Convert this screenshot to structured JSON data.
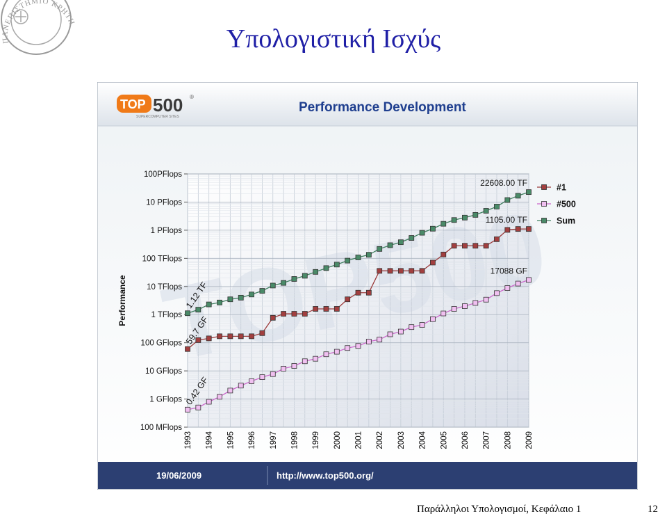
{
  "slide": {
    "title": "Υπολογιστική Ισχύς",
    "footer": "Παράλληλοι Υπολογισμοί, Κεφάλαιο 1",
    "page_number": "12",
    "seal_text": "ΠΑΝΕΠΙΣΤΗΜΙΟ ΚΡΗΤΗΣ"
  },
  "header": {
    "logo_text": "TOP500",
    "logo_top": "TOP",
    "logo_num": "500",
    "logo_registered": "®",
    "logo_tagline": "SUPERCOMPUTER SITES",
    "chart_title": "Performance Development"
  },
  "footer_bar": {
    "date": "19/06/2009",
    "url": "http://www.top500.org/"
  },
  "colors": {
    "title": "#1f1fa6",
    "header_text": "#1f3f8f",
    "number_one": "#9c3a3a",
    "number_500": "#cc66cc",
    "sum": "#3f7f5f",
    "footer_bar": "#2c3f72",
    "logo_orange": "#f07a18"
  },
  "chart_data": {
    "type": "line",
    "y_scale": "log",
    "ylabel": "Performance",
    "ylim_flops": [
      100000000.0,
      1e+17
    ],
    "yticks": [
      {
        "label": "100 MFlops",
        "value": 100000000.0
      },
      {
        "label": "1 GFlops",
        "value": 1000000000.0
      },
      {
        "label": "10 GFlops",
        "value": 10000000000.0
      },
      {
        "label": "100 GFlops",
        "value": 100000000000.0
      },
      {
        "label": "1 TFlops",
        "value": 1000000000000.0
      },
      {
        "label": "10 TFlops",
        "value": 10000000000000.0
      },
      {
        "label": "100 TFlops",
        "value": 100000000000000.0
      },
      {
        "label": "1 PFlops",
        "value": 1000000000000000.0
      },
      {
        "label": "10 PFlops",
        "value": 1e+16
      },
      {
        "label": "100PFlops",
        "value": 1e+17
      }
    ],
    "x_tick_labels": [
      "1993",
      "1994",
      "1995",
      "1996",
      "1997",
      "1998",
      "1999",
      "2000",
      "2001",
      "2002",
      "2003",
      "2004",
      "2005",
      "2006",
      "2007",
      "2008",
      "2009"
    ],
    "x": [
      1993.0,
      1993.5,
      1994.0,
      1994.5,
      1995.0,
      1995.5,
      1996.0,
      1996.5,
      1997.0,
      1997.5,
      1998.0,
      1998.5,
      1999.0,
      1999.5,
      2000.0,
      2000.5,
      2001.0,
      2001.5,
      2002.0,
      2002.5,
      2003.0,
      2003.5,
      2004.0,
      2004.5,
      2005.0,
      2005.5,
      2006.0,
      2006.5,
      2007.0,
      2007.5,
      2008.0,
      2008.5,
      2009.0
    ],
    "legend": [
      "#1",
      "#500",
      "Sum"
    ],
    "legend_position": "top-right",
    "series": [
      {
        "name": "#1",
        "values": [
          59700000000.0,
          124000000000.0,
          143000000000.0,
          170000000000.0,
          170000000000.0,
          170000000000.0,
          170000000000.0,
          220000000000.0,
          770000000000.0,
          1070000000000.0,
          1070000000000.0,
          1070000000000.0,
          1600000000000.0,
          1600000000000.0,
          1600000000000.0,
          3500000000000.0,
          6000000000000.0,
          6000000000000.0,
          35900000000000.0,
          35900000000000.0,
          35900000000000.0,
          35900000000000.0,
          35900000000000.0,
          70700000000000.0,
          137000000000000.0,
          280000000000000.0,
          280000000000000.0,
          280000000000000.0,
          280000000000000.0,
          478000000000000.0,
          1026000000000000.0,
          1105000000000000.0,
          1105000000000000.0
        ]
      },
      {
        "name": "#500",
        "values": [
          420000000.0,
          500000000.0,
          800000000.0,
          1200000000.0,
          2000000000.0,
          3000000000.0,
          4300000000.0,
          6000000000.0,
          7700000000.0,
          12000000000.0,
          15000000000.0,
          22000000000.0,
          27000000000.0,
          39000000000.0,
          48000000000.0,
          65000000000.0,
          77000000000.0,
          110000000000.0,
          130000000000.0,
          200000000000.0,
          250000000000.0,
          360000000000.0,
          430000000000.0,
          690000000000.0,
          1100000000000.0,
          1600000000000.0,
          2000000000000.0,
          2600000000000.0,
          3400000000000.0,
          5800000000000.0,
          8800000000000.0,
          12700000000000.0,
          17088000000000.0
        ]
      },
      {
        "name": "Sum",
        "values": [
          1120000000000.0,
          1500000000000.0,
          2300000000000.0,
          2700000000000.0,
          3500000000000.0,
          4000000000000.0,
          5200000000000.0,
          7000000000000.0,
          10800000000000.0,
          13400000000000.0,
          18500000000000.0,
          24000000000000.0,
          33000000000000.0,
          45000000000000.0,
          60000000000000.0,
          83000000000000.0,
          108000000000000.0,
          134000000000000.0,
          216000000000000.0,
          293000000000000.0,
          374000000000000.0,
          530000000000000.0,
          810000000000000.0,
          1130000000000000.0,
          1690000000000000.0,
          2300000000000000.0,
          2800000000000000.0,
          3500000000000000.0,
          4900000000000000.0,
          6900000000000000.0,
          1.18e+16,
          1.68e+16,
          2.26e+16
        ]
      }
    ],
    "annotations": [
      {
        "text": "1.12 TF",
        "series": "Sum",
        "at": "first"
      },
      {
        "text": "59.7 GF",
        "series": "#1",
        "at": "first"
      },
      {
        "text": "0.42 GF",
        "series": "#500",
        "at": "first"
      },
      {
        "text": "22608.00 TF",
        "series": "Sum",
        "at": "last"
      },
      {
        "text": "1105.00 TF",
        "series": "#1",
        "at": "last"
      },
      {
        "text": "17088 GF",
        "series": "#500",
        "at": "last"
      }
    ],
    "watermark": "TOP500"
  }
}
